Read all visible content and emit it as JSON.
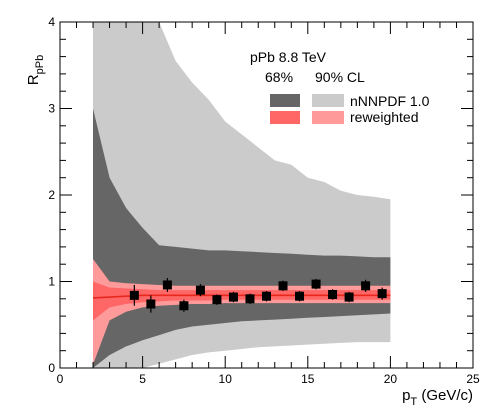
{
  "chart_data": {
    "type": "scatter",
    "title": "pPb 8.8 TeV",
    "xlabel": "p_T (GeV/c)",
    "ylabel": "R_pPb",
    "xlim": [
      0,
      25
    ],
    "ylim": [
      0,
      4
    ],
    "x_ticks": [
      0,
      5,
      10,
      15,
      20,
      25
    ],
    "y_ticks": [
      0,
      1,
      2,
      3,
      4
    ],
    "legend": {
      "title": "pPb 8.8 TeV",
      "cl_68": "68%",
      "cl_90": "90% CL",
      "row1": "nNNPDF 1.0",
      "row2": "reweighted",
      "placement": "top-right"
    },
    "bands": {
      "x": [
        2,
        3,
        4,
        5,
        6,
        7,
        8,
        9,
        10,
        11,
        12,
        13,
        14,
        15,
        16,
        17,
        18,
        19,
        20
      ],
      "nnnpdf_90": {
        "upper": [
          4.0,
          4.0,
          4.0,
          4.0,
          4.0,
          3.55,
          3.3,
          3.1,
          2.85,
          2.7,
          2.55,
          2.4,
          2.35,
          2.2,
          2.15,
          2.05,
          2.0,
          1.98,
          1.95
        ],
        "lower": [
          0.0,
          0.0,
          0.0,
          0.0,
          0.05,
          0.1,
          0.15,
          0.18,
          0.2,
          0.22,
          0.24,
          0.25,
          0.26,
          0.27,
          0.28,
          0.29,
          0.3,
          0.3,
          0.3
        ]
      },
      "nnnpdf_68": {
        "upper": [
          3.0,
          2.2,
          1.85,
          1.62,
          1.42,
          1.4,
          1.38,
          1.36,
          1.36,
          1.35,
          1.34,
          1.33,
          1.32,
          1.31,
          1.3,
          1.3,
          1.29,
          1.28,
          1.28
        ],
        "lower": [
          0.0,
          0.15,
          0.25,
          0.32,
          0.38,
          0.44,
          0.48,
          0.5,
          0.52,
          0.54,
          0.55,
          0.56,
          0.57,
          0.58,
          0.59,
          0.6,
          0.61,
          0.62,
          0.63
        ]
      },
      "reweighted_90": {
        "upper": [
          1.26,
          1.0,
          0.98,
          0.97,
          0.96,
          0.95,
          0.95,
          0.95,
          0.95,
          0.95,
          0.95,
          0.95,
          0.95,
          0.95,
          0.95,
          0.95,
          0.95,
          0.95,
          0.95
        ],
        "lower": [
          0.04,
          0.55,
          0.65,
          0.7,
          0.72,
          0.73,
          0.74,
          0.74,
          0.75,
          0.75,
          0.75,
          0.75,
          0.75,
          0.75,
          0.75,
          0.75,
          0.75,
          0.75,
          0.75
        ]
      },
      "reweighted_68": {
        "upper": [
          1.0,
          0.93,
          0.92,
          0.91,
          0.9,
          0.9,
          0.9,
          0.9,
          0.9,
          0.9,
          0.9,
          0.9,
          0.9,
          0.9,
          0.9,
          0.9,
          0.9,
          0.9,
          0.9
        ],
        "lower": [
          0.55,
          0.7,
          0.74,
          0.76,
          0.77,
          0.78,
          0.78,
          0.78,
          0.79,
          0.79,
          0.79,
          0.79,
          0.79,
          0.79,
          0.79,
          0.79,
          0.79,
          0.79,
          0.79
        ]
      },
      "central": [
        0.81,
        0.82,
        0.83,
        0.84,
        0.84,
        0.84,
        0.84,
        0.84,
        0.84,
        0.84,
        0.84,
        0.84,
        0.84,
        0.84,
        0.84,
        0.84,
        0.84,
        0.84,
        0.84
      ]
    },
    "series": [
      {
        "name": "data",
        "x": [
          4.5,
          5.5,
          6.5,
          7.5,
          8.5,
          9.5,
          10.5,
          11.5,
          12.5,
          13.5,
          14.5,
          15.5,
          16.5,
          17.5,
          18.5,
          19.5
        ],
        "y": [
          0.84,
          0.74,
          0.96,
          0.72,
          0.9,
          0.79,
          0.82,
          0.8,
          0.83,
          0.95,
          0.83,
          0.97,
          0.85,
          0.82,
          0.95,
          0.86
        ],
        "err": [
          0.12,
          0.1,
          0.08,
          0.07,
          0.07,
          0.06,
          0.06,
          0.06,
          0.06,
          0.06,
          0.06,
          0.06,
          0.06,
          0.06,
          0.07,
          0.07
        ]
      }
    ],
    "colors": {
      "nnnpdf_90": "#cbcbcb",
      "nnnpdf_68": "#666666",
      "reweighted_90": "#ff9a9a",
      "reweighted_68": "#ff6666",
      "central_line": "#e8281e",
      "points": "#000000"
    },
    "grid": false
  }
}
